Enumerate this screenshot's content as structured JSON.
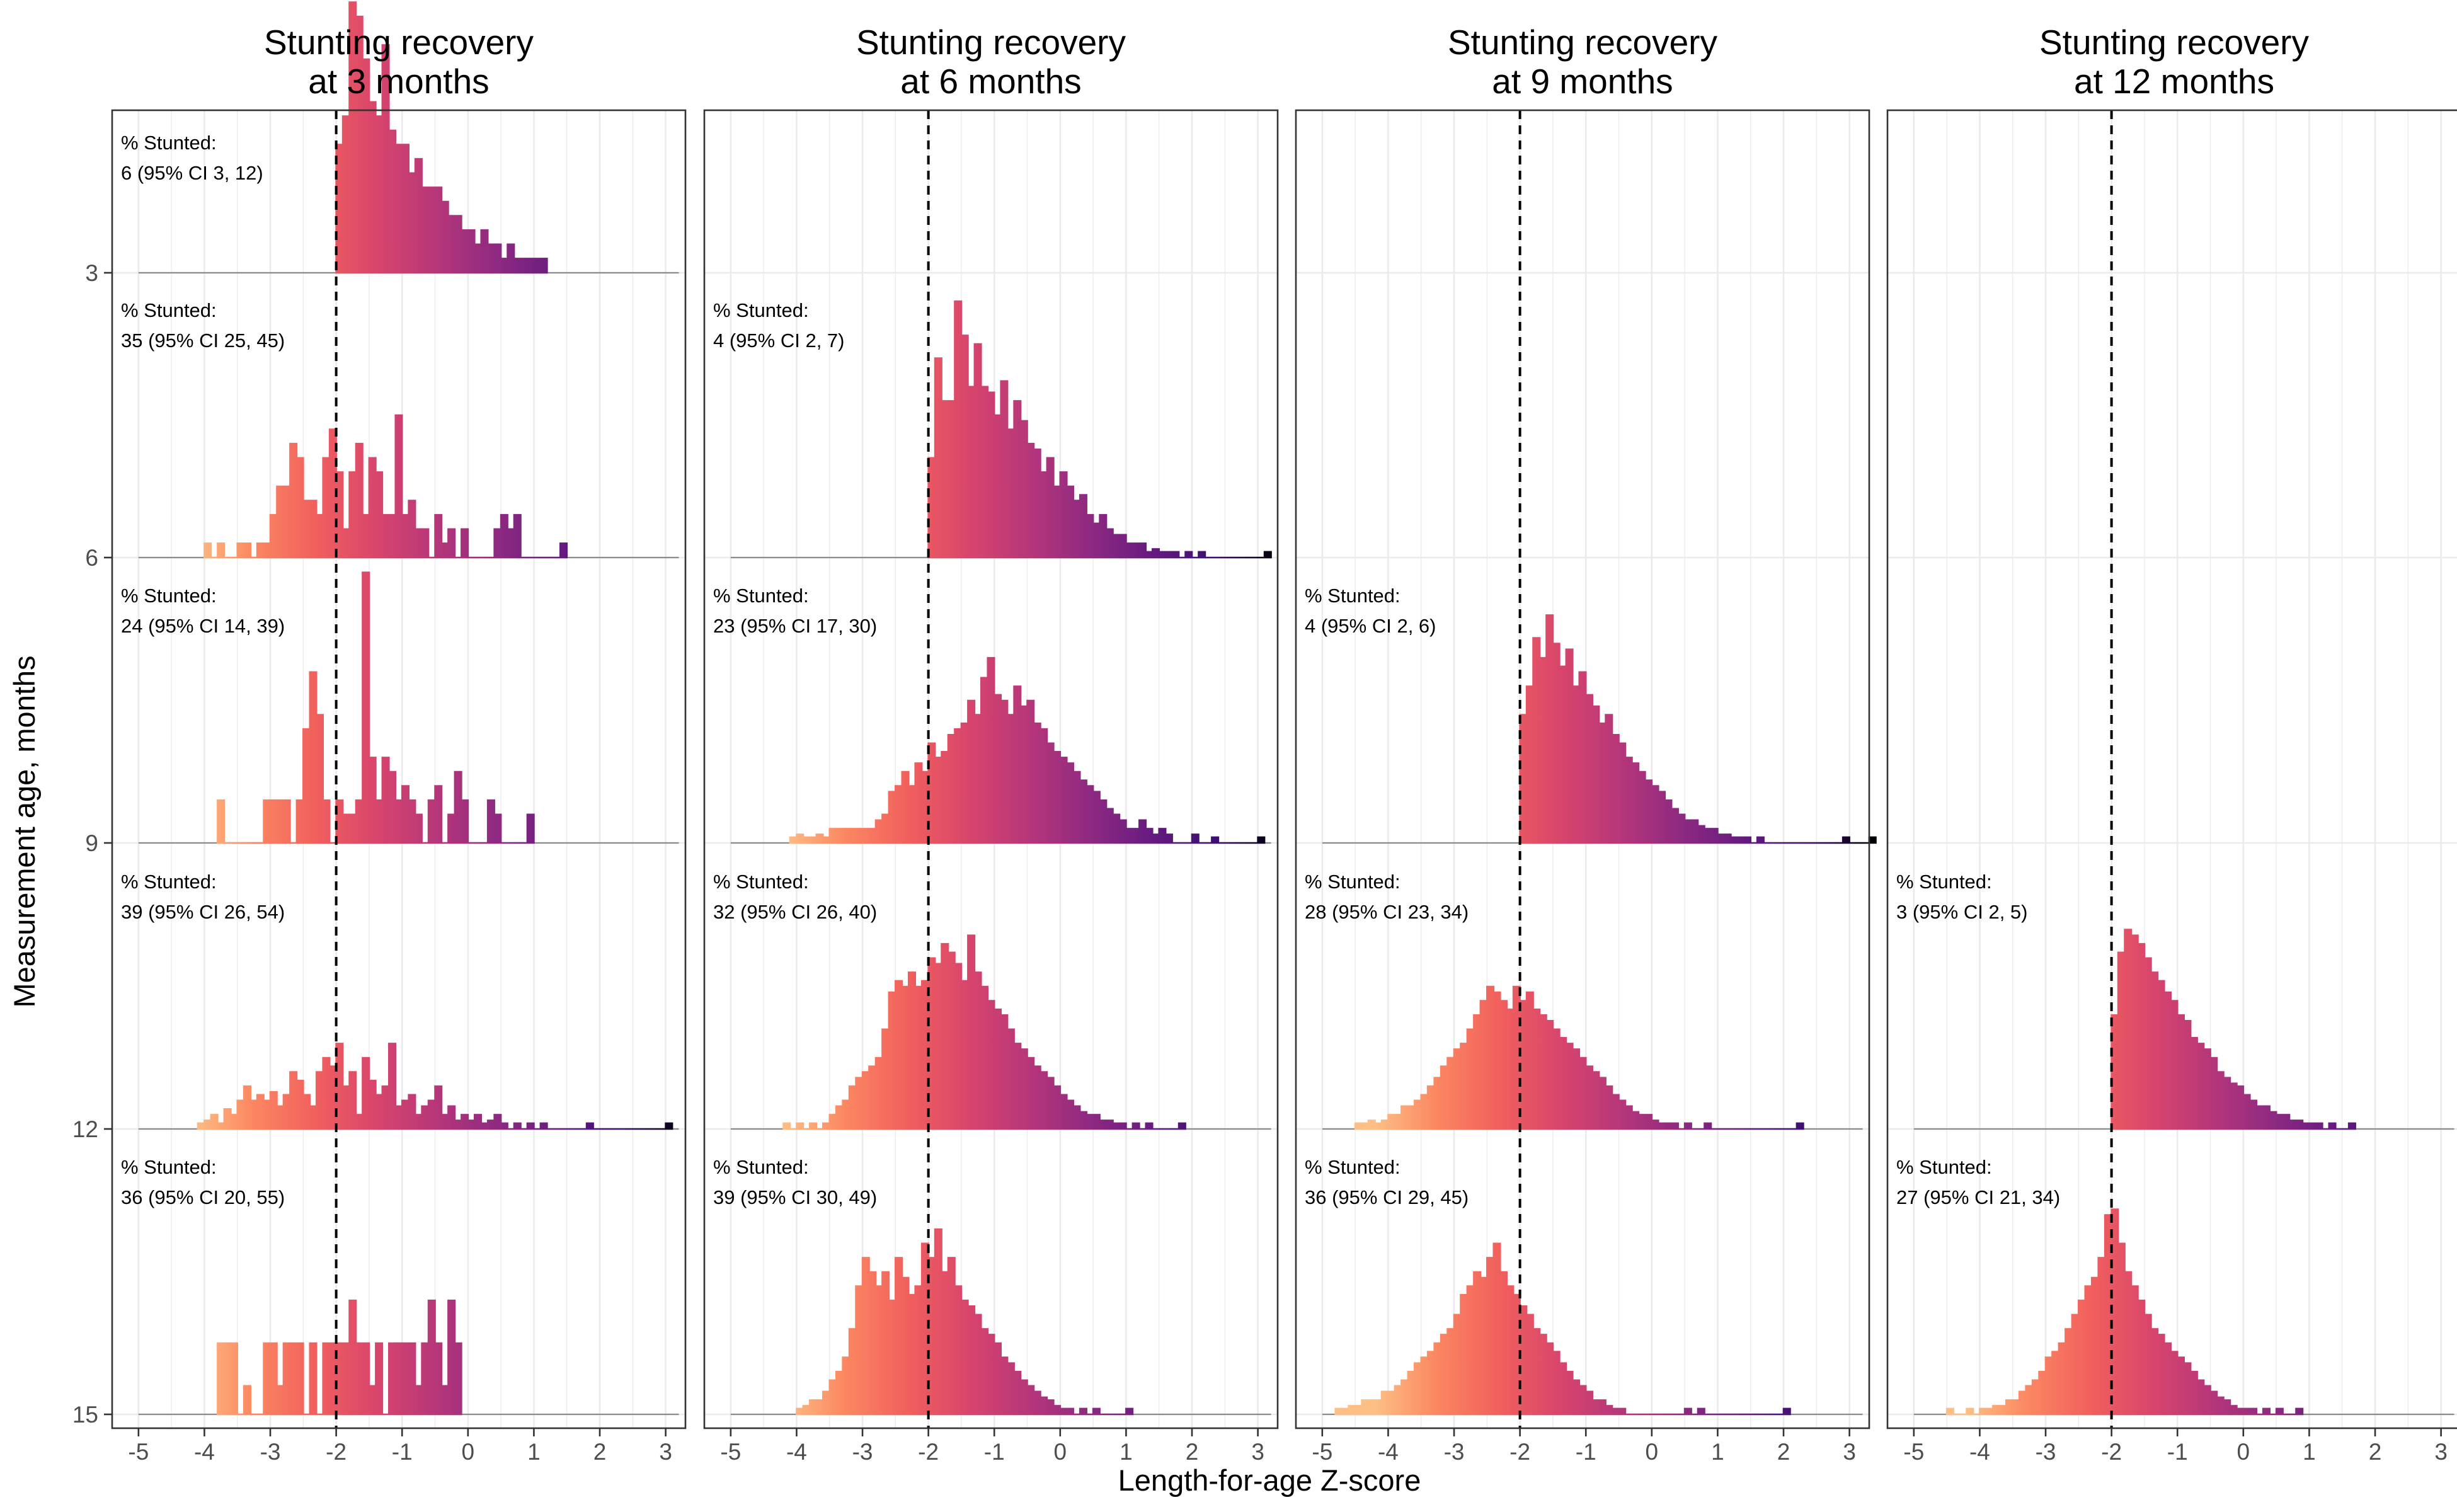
{
  "figure": {
    "xlabel": "Length-for-age Z-score",
    "ylabel": "Measurement age, months"
  },
  "chart_data": {
    "type": "histogram-ridgeline",
    "xlim": [
      -5.4,
      3.3
    ],
    "x_ticks": [
      -5,
      -4,
      -3,
      -2,
      -1,
      0,
      1,
      2,
      3
    ],
    "x_tick_labels": [
      "-5",
      "-4",
      "-3",
      "-2",
      "-1",
      "0",
      "1",
      "2",
      "3"
    ],
    "y_ticks": [
      3,
      6,
      9,
      12,
      15
    ],
    "y_tick_labels": [
      "3",
      "6",
      "9",
      "12",
      "15"
    ],
    "stunting_cutoff": -2,
    "bin_width": 0.1,
    "fill_gradient": [
      "#fdbf86",
      "#fb8761",
      "#f1605d",
      "#d8456c",
      "#b5367a",
      "#8c2981",
      "#651a80",
      "#3b0f70",
      "#000004"
    ],
    "grid": true,
    "panels": [
      {
        "title": "Stunting recovery at 3 months",
        "title_lines": [
          "Stunting recovery",
          "at 3 months"
        ],
        "rows": [
          {
            "age": 3,
            "label_line1": "% Stunted:",
            "label_line2": "6 (95% CI 3, 12)",
            "x0": -2.0,
            "heights": [
              0.45,
              0.55,
              0.95,
              0.9,
              0.75,
              0.6,
              0.55,
              0.8,
              0.5,
              0.45,
              0.45,
              0.35,
              0.4,
              0.3,
              0.3,
              0.3,
              0.25,
              0.2,
              0.2,
              0.15,
              0.15,
              0.1,
              0.15,
              0.1,
              0.1,
              0.05,
              0.1,
              0.05,
              0.05,
              0.05,
              0.05,
              0.05
            ]
          },
          {
            "age": 6,
            "label_line1": "% Stunted:",
            "label_line2": "35 (95% CI 25, 45)",
            "x0": -4.0,
            "heights": [
              0.05,
              0,
              0.05,
              0,
              0,
              0.05,
              0.05,
              0,
              0.05,
              0.05,
              0.15,
              0.25,
              0.25,
              0.4,
              0.35,
              0.2,
              0.2,
              0.15,
              0.35,
              0.45,
              0.3,
              0.1,
              0.3,
              0.4,
              0.15,
              0.35,
              0.3,
              0.15,
              0.15,
              0.5,
              0.15,
              0.2,
              0.1,
              0.1,
              0,
              0.15,
              0.05,
              0.1,
              0,
              0.1,
              0,
              0,
              0,
              0,
              0.1,
              0.15,
              0.1,
              0.15,
              0,
              0,
              0,
              0,
              0,
              0,
              0.05
            ]
          },
          {
            "age": 9,
            "label_line1": "% Stunted:",
            "label_line2": "24 (95% CI 14, 39)",
            "x0": -3.8,
            "heights": [
              0.15,
              0,
              0,
              0,
              0,
              0,
              0,
              0.15,
              0.15,
              0.15,
              0.15,
              0,
              0.15,
              0.4,
              0.6,
              0.45,
              0.15,
              0,
              0.15,
              0.1,
              0.1,
              0.15,
              0.95,
              0.3,
              0.15,
              0.3,
              0.25,
              0.15,
              0.2,
              0.15,
              0.1,
              0,
              0.15,
              0.2,
              0,
              0.1,
              0.25,
              0.15,
              0,
              0,
              0,
              0.15,
              0.1,
              0,
              0,
              0,
              0,
              0.1
            ]
          },
          {
            "age": 12,
            "label_line1": "% Stunted:",
            "label_line2": "39 (95% CI 26, 54)",
            "x0": -4.1,
            "heights": [
              0.02,
              0.03,
              0.05,
              0.02,
              0.07,
              0.05,
              0.1,
              0.15,
              0.1,
              0.12,
              0.1,
              0.13,
              0.08,
              0.12,
              0.2,
              0.17,
              0.12,
              0.08,
              0.2,
              0.25,
              0.22,
              0.3,
              0.15,
              0.2,
              0.05,
              0.25,
              0.17,
              0.12,
              0.15,
              0.3,
              0.08,
              0.1,
              0.12,
              0.05,
              0.08,
              0.1,
              0.15,
              0.05,
              0.08,
              0.03,
              0.05,
              0.03,
              0.05,
              0.02,
              0.03,
              0.05,
              0.02,
              0,
              0.02,
              0,
              0.02,
              0,
              0.02,
              0,
              0,
              0,
              0,
              0,
              0,
              0.02,
              0,
              0,
              0,
              0,
              0,
              0,
              0,
              0,
              0,
              0,
              0,
              0.02
            ]
          },
          {
            "age": 15,
            "label_line1": "% Stunted:",
            "label_line2": "36 (95% CI 20, 55)",
            "x0": -3.8,
            "heights": [
              0.25,
              0.25,
              0.25,
              0,
              0.1,
              0,
              0,
              0.25,
              0.25,
              0.1,
              0.25,
              0.25,
              0.25,
              0,
              0.25,
              0,
              0.25,
              0.25,
              0.25,
              0.25,
              0.4,
              0.25,
              0.25,
              0.1,
              0.25,
              0,
              0.25,
              0.25,
              0.25,
              0.25,
              0.1,
              0.25,
              0.4,
              0.25,
              0.1,
              0.4,
              0.25
            ]
          }
        ]
      },
      {
        "title": "Stunting recovery at 6 months",
        "title_lines": [
          "Stunting recovery",
          "at 6 months"
        ],
        "rows": [
          {
            "age": 6,
            "label_line1": "% Stunted:",
            "label_line2": "4 (95% CI 2, 7)",
            "x0": -2.0,
            "heights": [
              0.35,
              0.7,
              0.55,
              0.55,
              0.9,
              0.78,
              0.6,
              0.75,
              0.6,
              0.58,
              0.5,
              0.62,
              0.45,
              0.55,
              0.48,
              0.4,
              0.38,
              0.3,
              0.35,
              0.25,
              0.3,
              0.25,
              0.2,
              0.22,
              0.15,
              0.12,
              0.15,
              0.1,
              0.08,
              0.08,
              0.05,
              0.05,
              0.05,
              0.02,
              0.03,
              0.02,
              0.02,
              0.02,
              0,
              0.02,
              0,
              0.02,
              0,
              0,
              0,
              0,
              0,
              0,
              0,
              0,
              0,
              0.02
            ]
          },
          {
            "age": 9,
            "label_line1": "% Stunted:",
            "label_line2": "23 (95% CI 17, 30)",
            "x0": -4.1,
            "heights": [
              0.02,
              0.03,
              0.02,
              0.02,
              0.03,
              0.02,
              0.05,
              0.05,
              0.05,
              0.05,
              0.05,
              0.05,
              0.05,
              0.08,
              0.1,
              0.18,
              0.2,
              0.25,
              0.2,
              0.28,
              0.25,
              0.35,
              0.3,
              0.32,
              0.38,
              0.4,
              0.42,
              0.5,
              0.45,
              0.58,
              0.65,
              0.52,
              0.5,
              0.45,
              0.55,
              0.48,
              0.5,
              0.42,
              0.4,
              0.35,
              0.32,
              0.3,
              0.28,
              0.25,
              0.22,
              0.2,
              0.18,
              0.15,
              0.12,
              0.1,
              0.08,
              0.05,
              0.05,
              0.08,
              0.05,
              0.03,
              0.05,
              0.03,
              0,
              0,
              0,
              0.03,
              0,
              0,
              0.02,
              0,
              0,
              0,
              0,
              0,
              0,
              0.02
            ]
          },
          {
            "age": 12,
            "label_line1": "% Stunted:",
            "label_line2": "32 (95% CI 26, 40)",
            "x0": -4.2,
            "heights": [
              0.02,
              0,
              0.02,
              0,
              0.02,
              0,
              0.02,
              0.05,
              0.08,
              0.1,
              0.15,
              0.18,
              0.2,
              0.22,
              0.25,
              0.35,
              0.48,
              0.52,
              0.5,
              0.55,
              0.5,
              0.52,
              0.6,
              0.58,
              0.65,
              0.62,
              0.58,
              0.52,
              0.68,
              0.55,
              0.5,
              0.45,
              0.42,
              0.4,
              0.35,
              0.3,
              0.28,
              0.25,
              0.22,
              0.2,
              0.18,
              0.15,
              0.12,
              0.1,
              0.08,
              0.06,
              0.05,
              0.05,
              0.03,
              0.03,
              0.02,
              0.02,
              0,
              0.02,
              0,
              0.02,
              0,
              0,
              0,
              0,
              0.02
            ]
          },
          {
            "age": 15,
            "label_line1": "% Stunted:",
            "label_line2": "39 (95% CI 30, 49)",
            "x0": -4.0,
            "heights": [
              0.02,
              0.03,
              0.05,
              0.05,
              0.08,
              0.12,
              0.15,
              0.2,
              0.3,
              0.45,
              0.55,
              0.5,
              0.45,
              0.5,
              0.4,
              0.55,
              0.48,
              0.42,
              0.45,
              0.6,
              0.55,
              0.65,
              0.5,
              0.55,
              0.45,
              0.4,
              0.38,
              0.35,
              0.3,
              0.28,
              0.25,
              0.2,
              0.18,
              0.15,
              0.12,
              0.1,
              0.08,
              0.06,
              0.05,
              0.03,
              0.02,
              0.02,
              0,
              0.02,
              0,
              0.02,
              0,
              0,
              0,
              0,
              0.02
            ]
          }
        ]
      },
      {
        "title": "Stunting recovery at 9 months",
        "title_lines": [
          "Stunting recovery",
          "at 9 months"
        ],
        "rows": [
          {
            "age": 9,
            "label_line1": "% Stunted:",
            "label_line2": "4 (95% CI 2, 6)",
            "x0": -2.0,
            "heights": [
              0.45,
              0.55,
              0.72,
              0.65,
              0.8,
              0.7,
              0.62,
              0.68,
              0.55,
              0.6,
              0.52,
              0.48,
              0.42,
              0.45,
              0.38,
              0.35,
              0.3,
              0.28,
              0.25,
              0.22,
              0.2,
              0.18,
              0.15,
              0.12,
              0.1,
              0.08,
              0.08,
              0.06,
              0.05,
              0.05,
              0.03,
              0.03,
              0.02,
              0.02,
              0.02,
              0,
              0.02,
              0,
              0,
              0,
              0,
              0,
              0,
              0,
              0,
              0,
              0,
              0,
              0,
              0.02,
              0,
              0,
              0,
              0.02
            ]
          },
          {
            "age": 12,
            "label_line1": "% Stunted:",
            "label_line2": "28 (95% CI 23, 34)",
            "x0": -4.5,
            "heights": [
              0.02,
              0.02,
              0.03,
              0.02,
              0.03,
              0.05,
              0.05,
              0.08,
              0.08,
              0.1,
              0.12,
              0.15,
              0.18,
              0.22,
              0.25,
              0.28,
              0.3,
              0.35,
              0.4,
              0.45,
              0.5,
              0.48,
              0.45,
              0.42,
              0.5,
              0.45,
              0.48,
              0.42,
              0.4,
              0.38,
              0.35,
              0.32,
              0.3,
              0.28,
              0.25,
              0.22,
              0.2,
              0.18,
              0.15,
              0.12,
              0.1,
              0.08,
              0.06,
              0.05,
              0.05,
              0.03,
              0.02,
              0.02,
              0.02,
              0,
              0.02,
              0,
              0,
              0.02,
              0,
              0,
              0,
              0,
              0,
              0,
              0,
              0,
              0,
              0,
              0,
              0,
              0,
              0.02
            ]
          },
          {
            "age": 15,
            "label_line1": "% Stunted:",
            "label_line2": "36 (95% CI 29, 45)",
            "x0": -4.8,
            "heights": [
              0.02,
              0.02,
              0.03,
              0.03,
              0.05,
              0.05,
              0.05,
              0.08,
              0.08,
              0.1,
              0.12,
              0.15,
              0.18,
              0.2,
              0.22,
              0.25,
              0.28,
              0.3,
              0.35,
              0.42,
              0.45,
              0.5,
              0.48,
              0.55,
              0.6,
              0.5,
              0.45,
              0.42,
              0.38,
              0.35,
              0.3,
              0.28,
              0.25,
              0.22,
              0.18,
              0.15,
              0.12,
              0.1,
              0.08,
              0.05,
              0.05,
              0.03,
              0.02,
              0.02,
              0,
              0,
              0,
              0,
              0,
              0,
              0,
              0,
              0,
              0.02,
              0,
              0.02,
              0,
              0,
              0,
              0,
              0,
              0,
              0,
              0,
              0,
              0,
              0,
              0,
              0.02
            ]
          }
        ]
      },
      {
        "title": "Stunting recovery at 12 months",
        "title_lines": [
          "Stunting recovery",
          "at 12 months"
        ],
        "rows": [
          {
            "age": 12,
            "label_line1": "% Stunted:",
            "label_line2": "3 (95% CI 2, 5)",
            "x0": -2.0,
            "heights": [
              0.4,
              0.62,
              0.7,
              0.68,
              0.65,
              0.6,
              0.55,
              0.52,
              0.48,
              0.45,
              0.4,
              0.38,
              0.32,
              0.3,
              0.28,
              0.25,
              0.2,
              0.18,
              0.16,
              0.15,
              0.12,
              0.1,
              0.08,
              0.08,
              0.06,
              0.05,
              0.05,
              0.03,
              0.03,
              0.02,
              0.02,
              0.02,
              0,
              0.02,
              0,
              0,
              0.02
            ]
          },
          {
            "age": 15,
            "label_line1": "% Stunted:",
            "label_line2": "27 (95% CI 21, 34)",
            "x0": -4.5,
            "heights": [
              0.02,
              0,
              0,
              0.02,
              0,
              0.02,
              0.02,
              0.03,
              0.03,
              0.05,
              0.05,
              0.08,
              0.1,
              0.12,
              0.15,
              0.2,
              0.22,
              0.25,
              0.3,
              0.35,
              0.4,
              0.45,
              0.48,
              0.55,
              0.7,
              0.72,
              0.6,
              0.5,
              0.45,
              0.4,
              0.35,
              0.3,
              0.28,
              0.25,
              0.22,
              0.2,
              0.18,
              0.15,
              0.12,
              0.1,
              0.08,
              0.06,
              0.05,
              0.03,
              0.02,
              0.02,
              0.02,
              0,
              0.02,
              0,
              0.02,
              0,
              0,
              0.02
            ]
          }
        ]
      }
    ]
  }
}
